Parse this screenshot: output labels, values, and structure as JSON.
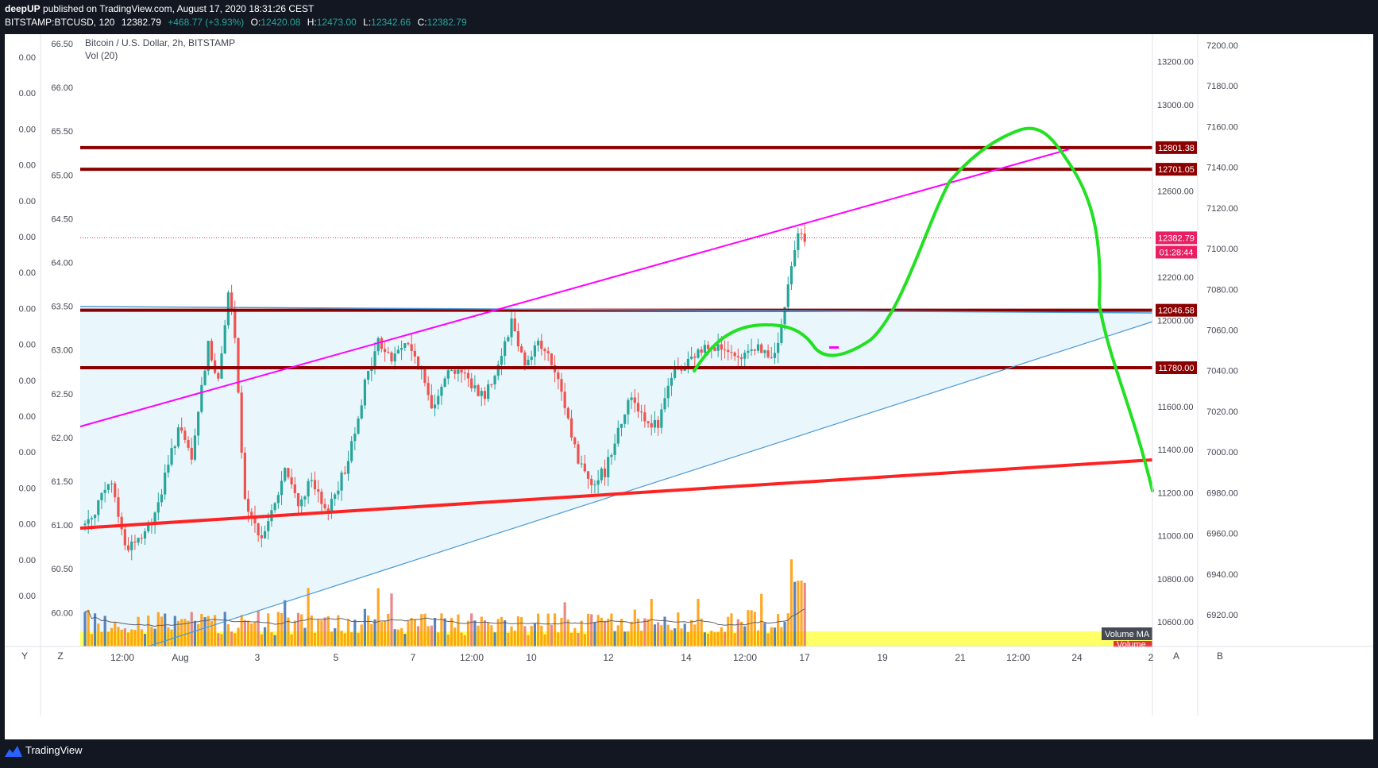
{
  "header": {
    "publisher_line": "deepUP published on TradingView.com, August 17, 2020 18:31:26 CEST",
    "publisher": "deepUP",
    "publisher_rest": " published on TradingView.com, August 17, 2020 18:31:26 CEST",
    "symbol": "BITSTAMP:BTCUSD, 120",
    "last": "12382.79",
    "change": "+468.77 (+3.93%)",
    "o_label": "O:",
    "o": "12420.08",
    "h_label": "H:",
    "h": "12473.00",
    "l_label": "L:",
    "l": "12342.66",
    "c_label": "C:",
    "c": "12382.79"
  },
  "legend": {
    "title": "Bitcoin / U.S. Dollar, 2h, BITSTAMP",
    "indicator": "Vol (20)"
  },
  "footer": {
    "brand": "TradingView"
  },
  "bottom_buttons": {
    "left_y": "Y",
    "left_z": "Z",
    "right_a": "A",
    "right_b": "B"
  },
  "colors": {
    "background": "#131722",
    "chart_bg": "#ffffff",
    "up": "#26a69a",
    "down": "#ef5350",
    "level_line": "#8b0000",
    "magenta": "#ff00ff",
    "green_path": "#00e000",
    "red_line": "#ff2222",
    "blue_line": "#4a9ad8",
    "channel_fill": "#e9f6fb",
    "volume_band": "#ffff66"
  },
  "chart_data": {
    "type": "candlestick",
    "symbol": "BITSTAMP:BTCUSD",
    "interval": "2h",
    "x_ticks": [
      "12:00",
      "Aug",
      "3",
      "5",
      "7",
      "12:00",
      "10",
      "12",
      "14",
      "12:00",
      "17",
      "19",
      "21",
      "12:00",
      "24",
      "2"
    ],
    "main_axis_ticks": [
      "13200.00",
      "13000.00",
      "12600.00",
      "12200.00",
      "12000.00",
      "11600.00",
      "11400.00",
      "11200.00",
      "11000.00",
      "10800.00",
      "10600.00"
    ],
    "right_axis_ticks": [
      "7200.00",
      "7180.00",
      "7160.00",
      "7140.00",
      "7120.00",
      "7100.00",
      "7080.00",
      "7060.00",
      "7040.00",
      "7020.00",
      "7000.00",
      "6980.00",
      "6960.00",
      "6940.00",
      "6920.00"
    ],
    "left_axis_ticks": [
      "66.50",
      "66.00",
      "65.50",
      "65.00",
      "64.50",
      "64.00",
      "63.50",
      "63.00",
      "62.50",
      "62.00",
      "61.50",
      "61.00",
      "60.50",
      "60.00"
    ],
    "left_zero_ticks": [
      "0.00",
      "0.00",
      "0.00",
      "0.00",
      "0.00",
      "0.00",
      "0.00",
      "0.00",
      "0.00",
      "0.00",
      "0.00",
      "0.00",
      "0.00",
      "0.00",
      "0.00",
      "0.00"
    ],
    "horizontal_levels": [
      12801.38,
      12701.05,
      12046.58,
      11780.0
    ],
    "level_labels": [
      "12801.38",
      "12701.05",
      "12046.58",
      "11780.00"
    ],
    "last_price": 12382.79,
    "last_price_label": "12382.79",
    "countdown": "01:28:44",
    "volume_labels": [
      "Volume MA",
      "Volume"
    ],
    "price_range": [
      10500,
      13280
    ],
    "candle_count": 226,
    "price_path": [
      [
        0,
        11050
      ],
      [
        8,
        11250
      ],
      [
        12,
        10950
      ],
      [
        18,
        11000
      ],
      [
        22,
        11150
      ],
      [
        28,
        11500
      ],
      [
        32,
        11350
      ],
      [
        37,
        11900
      ],
      [
        40,
        11700
      ],
      [
        43,
        12150
      ],
      [
        45,
        11900
      ],
      [
        48,
        11150
      ],
      [
        52,
        10990
      ],
      [
        56,
        11100
      ],
      [
        60,
        11300
      ],
      [
        64,
        11150
      ],
      [
        68,
        11250
      ],
      [
        72,
        11100
      ],
      [
        78,
        11300
      ],
      [
        84,
        11700
      ],
      [
        88,
        11900
      ],
      [
        92,
        11820
      ],
      [
        96,
        11900
      ],
      [
        100,
        11800
      ],
      [
        104,
        11600
      ],
      [
        108,
        11750
      ],
      [
        112,
        11780
      ],
      [
        116,
        11700
      ],
      [
        120,
        11650
      ],
      [
        124,
        11800
      ],
      [
        128,
        12000
      ],
      [
        132,
        11800
      ],
      [
        136,
        11900
      ],
      [
        140,
        11800
      ],
      [
        144,
        11600
      ],
      [
        148,
        11350
      ],
      [
        152,
        11250
      ],
      [
        156,
        11300
      ],
      [
        160,
        11500
      ],
      [
        164,
        11650
      ],
      [
        168,
        11550
      ],
      [
        172,
        11500
      ],
      [
        176,
        11750
      ],
      [
        180,
        11780
      ],
      [
        184,
        11850
      ],
      [
        188,
        11900
      ],
      [
        192,
        11850
      ],
      [
        196,
        11800
      ],
      [
        200,
        11880
      ],
      [
        204,
        11860
      ],
      [
        206,
        11800
      ],
      [
        208,
        11900
      ],
      [
        210,
        12050
      ],
      [
        212,
        12250
      ],
      [
        214,
        12430
      ],
      [
        215,
        12420
      ],
      [
        216,
        12380
      ]
    ]
  }
}
